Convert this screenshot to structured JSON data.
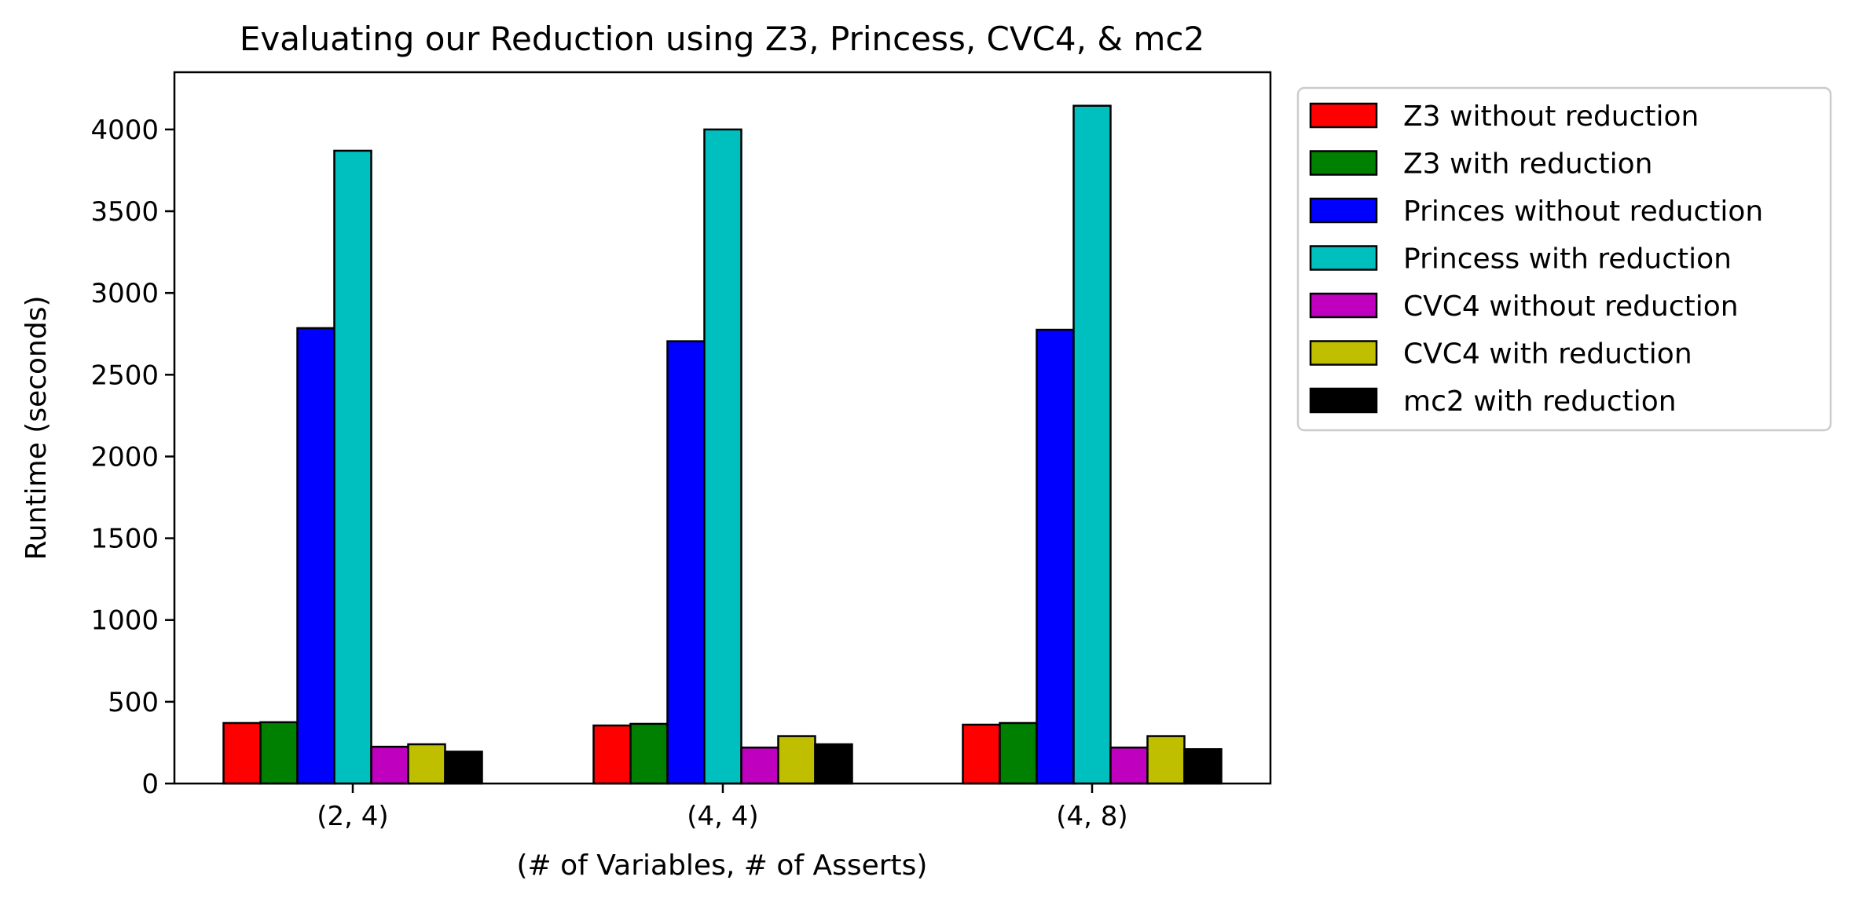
{
  "chart_data": {
    "type": "bar",
    "title": "Evaluating our Reduction using Z3, Princess, CVC4, & mc2",
    "xlabel": "(# of Variables, # of Asserts)",
    "ylabel": "Runtime (seconds)",
    "categories": [
      "(2, 4)",
      "(4, 4)",
      "(4, 8)"
    ],
    "ylim": [
      0,
      4350
    ],
    "yticks": [
      0,
      500,
      1000,
      1500,
      2000,
      2500,
      3000,
      3500,
      4000
    ],
    "grid": false,
    "legend_position": "outside-right-top",
    "series": [
      {
        "name": "Z3 without reduction",
        "color": "#ff0000",
        "values": [
          370,
          355,
          360
        ]
      },
      {
        "name": "Z3 with reduction",
        "color": "#008000",
        "values": [
          375,
          365,
          370
        ]
      },
      {
        "name": "Princes without reduction",
        "color": "#0000ff",
        "values": [
          2785,
          2705,
          2775
        ]
      },
      {
        "name": "Princess with reduction",
        "color": "#00bfbf",
        "values": [
          3870,
          4000,
          4145
        ]
      },
      {
        "name": "CVC4 without reduction",
        "color": "#bf00bf",
        "values": [
          225,
          220,
          220
        ]
      },
      {
        "name": "CVC4 with reduction",
        "color": "#bfbf00",
        "values": [
          240,
          290,
          290
        ]
      },
      {
        "name": "mc2 with reduction",
        "color": "#000000",
        "values": [
          195,
          240,
          210
        ]
      }
    ]
  }
}
